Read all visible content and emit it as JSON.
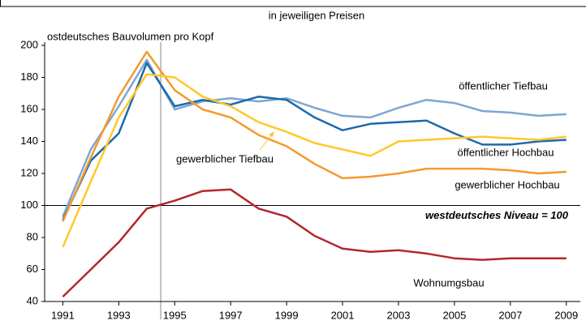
{
  "chart_data": {
    "type": "line",
    "subtitle": "in jeweiligen Preisen",
    "ylabel": "ostdeutsches Bauvolumen pro Kopf",
    "x": [
      1991,
      1992,
      1993,
      1994,
      1995,
      1996,
      1997,
      1998,
      1999,
      2000,
      2001,
      2002,
      2003,
      2004,
      2005,
      2006,
      2007,
      2008,
      2009
    ],
    "xlim": [
      1990.35,
      2009.5
    ],
    "xticks": [
      1991,
      1993,
      1995,
      1997,
      1999,
      2001,
      2003,
      2005,
      2007,
      2009
    ],
    "ylim": [
      40,
      200
    ],
    "yticks": [
      40,
      60,
      80,
      100,
      120,
      140,
      160,
      180,
      200
    ],
    "divider_x": 1994.5,
    "reference": {
      "value": 100,
      "label": "westdeutsches Niveau = 100"
    },
    "series": [
      {
        "name": "öffentlicher Tiefbau",
        "color": "#7ea6d3",
        "values": [
          93,
          135,
          162,
          191,
          160,
          165,
          167,
          165,
          167,
          161,
          156,
          155,
          161,
          166,
          164,
          159,
          158,
          156,
          157
        ]
      },
      {
        "name": "öffentlicher Hochbau",
        "color": "#1a6aad",
        "values": [
          91,
          128,
          145,
          189,
          162,
          166,
          163,
          168,
          166,
          155,
          147,
          151,
          152,
          153,
          145,
          138,
          138,
          140,
          141
        ]
      },
      {
        "name": "gewerblicher Hochbau",
        "color": "#f39a2b",
        "values": [
          90,
          130,
          168,
          196,
          172,
          160,
          155,
          144,
          137,
          126,
          117,
          118,
          120,
          123,
          123,
          123,
          122,
          120,
          121
        ]
      },
      {
        "name": "gewerblicher Tiefbau",
        "color": "#ffc82a",
        "values": [
          74,
          115,
          155,
          182,
          180,
          168,
          162,
          152,
          146,
          139,
          135,
          131,
          140,
          141,
          142,
          143,
          142,
          141,
          143
        ]
      },
      {
        "name": "Wohnumgsbau",
        "color": "#b3272e",
        "values": [
          43,
          60,
          77,
          98,
          103,
          109,
          110,
          98,
          93,
          81,
          73,
          71,
          72,
          70,
          67,
          66,
          67,
          67,
          67
        ]
      }
    ]
  }
}
